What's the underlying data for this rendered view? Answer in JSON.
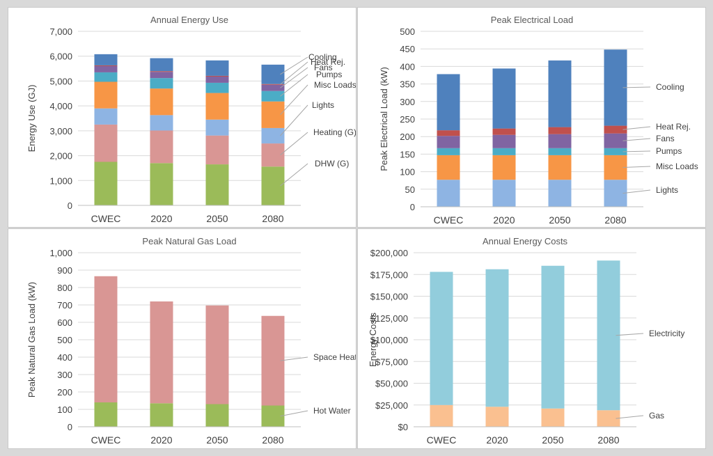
{
  "chart_data": [
    {
      "type": "bar",
      "stacked": true,
      "title": "Annual Energy Use",
      "ylabel": "Energy Use (GJ)",
      "xlabel": "",
      "categories": [
        "CWEC",
        "2020",
        "2050",
        "2080"
      ],
      "ylim": [
        0,
        7000
      ],
      "yticks": [
        0,
        1000,
        2000,
        3000,
        4000,
        5000,
        6000,
        7000
      ],
      "ytick_labels": [
        "0",
        "1,000",
        "2,000",
        "3,000",
        "4,000",
        "5,000",
        "6,000",
        "7,000"
      ],
      "grid": true,
      "legend": "inline-right",
      "series": [
        {
          "name": "DHW (G)",
          "color": "#9bbb59",
          "values": [
            1750,
            1700,
            1650,
            1560
          ]
        },
        {
          "name": "Heating (G)",
          "color": "#d99694",
          "values": [
            1500,
            1310,
            1160,
            930
          ]
        },
        {
          "name": "Lights",
          "color": "#8eb4e3",
          "values": [
            650,
            620,
            640,
            620
          ]
        },
        {
          "name": "Misc Loads",
          "color": "#f79646",
          "values": [
            1070,
            1070,
            1070,
            1070
          ]
        },
        {
          "name": "Pumps",
          "color": "#4bacc6",
          "values": [
            380,
            420,
            410,
            420
          ]
        },
        {
          "name": "Fans",
          "color": "#8064a2",
          "values": [
            250,
            250,
            250,
            250
          ]
        },
        {
          "name": "Heat Rej.",
          "color": "#c0504d",
          "values": [
            30,
            30,
            30,
            30
          ]
        },
        {
          "name": "Cooling",
          "color": "#4f81bd",
          "values": [
            450,
            520,
            620,
            780
          ]
        }
      ]
    },
    {
      "type": "bar",
      "stacked": true,
      "title": "Peak Electrical Load",
      "ylabel": "Peak Electrical Load (kW)",
      "xlabel": "",
      "categories": [
        "CWEC",
        "2020",
        "2050",
        "2080"
      ],
      "ylim": [
        0,
        500
      ],
      "yticks": [
        0,
        50,
        100,
        150,
        200,
        250,
        300,
        350,
        400,
        450,
        500
      ],
      "ytick_labels": [
        "0",
        "50",
        "100",
        "150",
        "200",
        "250",
        "300",
        "350",
        "400",
        "450",
        "500"
      ],
      "grid": true,
      "legend": "inline-right",
      "series": [
        {
          "name": "Lights",
          "color": "#8eb4e3",
          "values": [
            77,
            77,
            77,
            77
          ]
        },
        {
          "name": "Misc Loads",
          "color": "#f79646",
          "values": [
            70,
            70,
            70,
            70
          ]
        },
        {
          "name": "Pumps",
          "color": "#4bacc6",
          "values": [
            20,
            20,
            20,
            20
          ]
        },
        {
          "name": "Fans",
          "color": "#8064a2",
          "values": [
            35,
            38,
            40,
            42
          ]
        },
        {
          "name": "Heat Rej.",
          "color": "#c0504d",
          "values": [
            16,
            18,
            20,
            22
          ]
        },
        {
          "name": "Cooling",
          "color": "#4f81bd",
          "values": [
            160,
            171,
            190,
            217
          ]
        }
      ]
    },
    {
      "type": "bar",
      "stacked": true,
      "title": "Peak Natural Gas Load",
      "ylabel": "Peak Natural Gas Load (kW)",
      "xlabel": "",
      "categories": [
        "CWEC",
        "2020",
        "2050",
        "2080"
      ],
      "ylim": [
        0,
        1000
      ],
      "yticks": [
        0,
        100,
        200,
        300,
        400,
        500,
        600,
        700,
        800,
        900,
        1000
      ],
      "ytick_labels": [
        "0",
        "100",
        "200",
        "300",
        "400",
        "500",
        "600",
        "700",
        "800",
        "900",
        "1,000"
      ],
      "grid": true,
      "legend": "inline-right",
      "series": [
        {
          "name": "Hot Water",
          "color": "#9bbb59",
          "values": [
            140,
            135,
            130,
            122
          ]
        },
        {
          "name": "Space Heat",
          "color": "#d99694",
          "values": [
            725,
            585,
            567,
            515
          ]
        }
      ]
    },
    {
      "type": "bar",
      "stacked": true,
      "title": "Annual Energy Costs",
      "ylabel": "Energy Costs",
      "xlabel": "",
      "categories": [
        "CWEC",
        "2020",
        "2050",
        "2080"
      ],
      "ylim": [
        0,
        200000
      ],
      "yticks": [
        0,
        25000,
        50000,
        75000,
        100000,
        125000,
        150000,
        175000,
        200000
      ],
      "ytick_labels": [
        "$0",
        "$25,000",
        "$50,000",
        "$75,000",
        "$100,000",
        "$125,000",
        "$150,000",
        "$175,000",
        "$200,000"
      ],
      "grid": true,
      "legend": "inline-right",
      "series": [
        {
          "name": "Gas",
          "color": "#fac090",
          "values": [
            25000,
            23000,
            21000,
            19000
          ]
        },
        {
          "name": "Electricity",
          "color": "#92cddc",
          "values": [
            153000,
            158000,
            164000,
            172000
          ]
        }
      ]
    }
  ]
}
